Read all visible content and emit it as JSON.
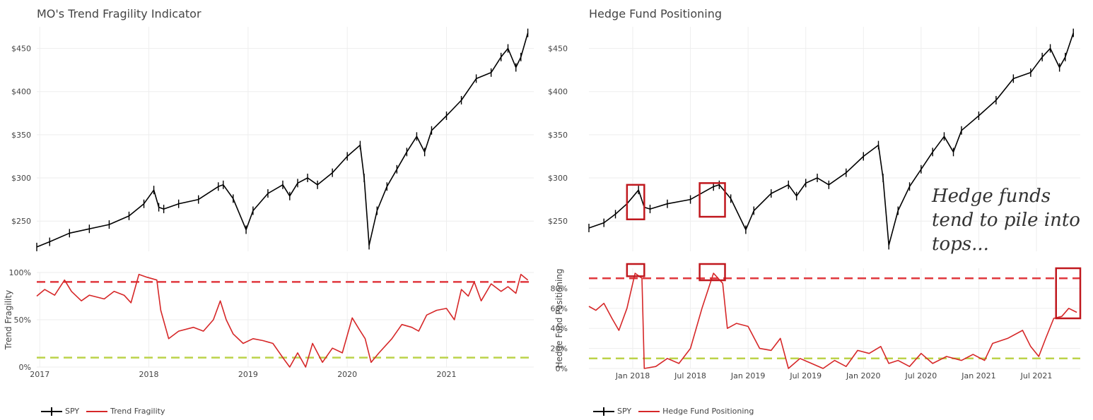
{
  "colors": {
    "price": "#000000",
    "indicator": "#d62728",
    "upper_line": "#e0383e",
    "lower_line": "#bcd34a",
    "highlight": "#c0181e",
    "grid": "#eeeeee"
  },
  "chart_data": [
    {
      "type": "line",
      "title": "MO's Trend Fragility Indicator",
      "price_panel": {
        "series_name": "SPY",
        "y_ticks": [
          "$250",
          "$300",
          "$350",
          "$400",
          "$450"
        ],
        "y_tick_values": [
          250,
          300,
          350,
          400,
          450
        ],
        "ylim": [
          215,
          475
        ],
        "xlim": [
          2016.87,
          2021.88
        ],
        "points": [
          [
            2016.87,
            220
          ],
          [
            2017.0,
            226
          ],
          [
            2017.2,
            236
          ],
          [
            2017.4,
            241
          ],
          [
            2017.6,
            246
          ],
          [
            2017.8,
            256
          ],
          [
            2017.95,
            270
          ],
          [
            2018.05,
            286
          ],
          [
            2018.1,
            266
          ],
          [
            2018.15,
            264
          ],
          [
            2018.3,
            270
          ],
          [
            2018.5,
            275
          ],
          [
            2018.7,
            290
          ],
          [
            2018.75,
            292
          ],
          [
            2018.85,
            276
          ],
          [
            2018.98,
            240
          ],
          [
            2019.05,
            262
          ],
          [
            2019.2,
            282
          ],
          [
            2019.35,
            292
          ],
          [
            2019.42,
            279
          ],
          [
            2019.5,
            294
          ],
          [
            2019.6,
            300
          ],
          [
            2019.7,
            292
          ],
          [
            2019.85,
            306
          ],
          [
            2020.0,
            325
          ],
          [
            2020.13,
            338
          ],
          [
            2020.17,
            300
          ],
          [
            2020.22,
            222
          ],
          [
            2020.3,
            262
          ],
          [
            2020.4,
            290
          ],
          [
            2020.5,
            310
          ],
          [
            2020.6,
            330
          ],
          [
            2020.7,
            348
          ],
          [
            2020.78,
            330
          ],
          [
            2020.85,
            355
          ],
          [
            2021.0,
            372
          ],
          [
            2021.15,
            390
          ],
          [
            2021.3,
            415
          ],
          [
            2021.45,
            422
          ],
          [
            2021.55,
            440
          ],
          [
            2021.62,
            450
          ],
          [
            2021.7,
            428
          ],
          [
            2021.75,
            440
          ],
          [
            2021.82,
            468
          ]
        ]
      },
      "indicator_panel": {
        "series_name": "Trend Fragility",
        "ylabel": "Trend Fragility",
        "y_ticks": [
          "0%",
          "50%",
          "100%"
        ],
        "y_tick_values": [
          0,
          50,
          100
        ],
        "ylim": [
          0,
          100
        ],
        "upper_threshold": 90,
        "lower_threshold": 10,
        "x_ticks": [
          "2017",
          "2018",
          "2019",
          "2020",
          "2021"
        ],
        "x_tick_values": [
          2016.9,
          2018.0,
          2019.0,
          2020.0,
          2021.0
        ],
        "xlim": [
          2016.87,
          2021.88
        ],
        "points": [
          [
            2016.87,
            75
          ],
          [
            2016.95,
            82
          ],
          [
            2017.05,
            76
          ],
          [
            2017.15,
            92
          ],
          [
            2017.22,
            80
          ],
          [
            2017.32,
            70
          ],
          [
            2017.4,
            76
          ],
          [
            2017.55,
            72
          ],
          [
            2017.65,
            80
          ],
          [
            2017.75,
            76
          ],
          [
            2017.82,
            68
          ],
          [
            2017.9,
            98
          ],
          [
            2017.98,
            95
          ],
          [
            2018.08,
            92
          ],
          [
            2018.12,
            60
          ],
          [
            2018.2,
            30
          ],
          [
            2018.3,
            38
          ],
          [
            2018.45,
            42
          ],
          [
            2018.55,
            38
          ],
          [
            2018.65,
            50
          ],
          [
            2018.72,
            70
          ],
          [
            2018.78,
            50
          ],
          [
            2018.85,
            35
          ],
          [
            2018.95,
            25
          ],
          [
            2019.05,
            30
          ],
          [
            2019.15,
            28
          ],
          [
            2019.25,
            25
          ],
          [
            2019.35,
            10
          ],
          [
            2019.42,
            0
          ],
          [
            2019.5,
            15
          ],
          [
            2019.58,
            0
          ],
          [
            2019.65,
            25
          ],
          [
            2019.75,
            5
          ],
          [
            2019.85,
            20
          ],
          [
            2019.95,
            15
          ],
          [
            2020.05,
            52
          ],
          [
            2020.12,
            40
          ],
          [
            2020.18,
            30
          ],
          [
            2020.24,
            5
          ],
          [
            2020.32,
            15
          ],
          [
            2020.45,
            30
          ],
          [
            2020.55,
            45
          ],
          [
            2020.65,
            42
          ],
          [
            2020.72,
            38
          ],
          [
            2020.8,
            55
          ],
          [
            2020.9,
            60
          ],
          [
            2021.0,
            62
          ],
          [
            2021.08,
            50
          ],
          [
            2021.15,
            82
          ],
          [
            2021.22,
            75
          ],
          [
            2021.28,
            90
          ],
          [
            2021.35,
            70
          ],
          [
            2021.45,
            88
          ],
          [
            2021.55,
            80
          ],
          [
            2021.62,
            85
          ],
          [
            2021.7,
            78
          ],
          [
            2021.75,
            98
          ],
          [
            2021.82,
            92
          ]
        ]
      },
      "legend": [
        "SPY",
        "Trend Fragility"
      ]
    },
    {
      "type": "line",
      "title": "Hedge Fund Positioning",
      "price_panel": {
        "series_name": "SPY",
        "y_ticks": [
          "$250",
          "$300",
          "$350",
          "$400",
          "$450"
        ],
        "y_tick_values": [
          250,
          300,
          350,
          400,
          450
        ],
        "ylim": [
          215,
          475
        ],
        "xlim": [
          2017.62,
          2021.88
        ],
        "points": [
          [
            2017.62,
            242
          ],
          [
            2017.75,
            248
          ],
          [
            2017.85,
            258
          ],
          [
            2017.95,
            270
          ],
          [
            2018.05,
            286
          ],
          [
            2018.1,
            266
          ],
          [
            2018.15,
            264
          ],
          [
            2018.3,
            270
          ],
          [
            2018.5,
            275
          ],
          [
            2018.7,
            290
          ],
          [
            2018.75,
            292
          ],
          [
            2018.85,
            276
          ],
          [
            2018.98,
            240
          ],
          [
            2019.05,
            262
          ],
          [
            2019.2,
            282
          ],
          [
            2019.35,
            292
          ],
          [
            2019.42,
            279
          ],
          [
            2019.5,
            294
          ],
          [
            2019.6,
            300
          ],
          [
            2019.7,
            292
          ],
          [
            2019.85,
            306
          ],
          [
            2020.0,
            325
          ],
          [
            2020.13,
            338
          ],
          [
            2020.17,
            300
          ],
          [
            2020.22,
            222
          ],
          [
            2020.3,
            262
          ],
          [
            2020.4,
            290
          ],
          [
            2020.5,
            310
          ],
          [
            2020.6,
            330
          ],
          [
            2020.7,
            348
          ],
          [
            2020.78,
            330
          ],
          [
            2020.85,
            355
          ],
          [
            2021.0,
            372
          ],
          [
            2021.15,
            390
          ],
          [
            2021.3,
            415
          ],
          [
            2021.45,
            422
          ],
          [
            2021.55,
            440
          ],
          [
            2021.62,
            450
          ],
          [
            2021.7,
            428
          ],
          [
            2021.75,
            440
          ],
          [
            2021.82,
            468
          ]
        ]
      },
      "indicator_panel": {
        "series_name": "Hedge Fund Positioning",
        "ylabel": "Hedge Fund Positioning",
        "y_ticks": [
          "0%",
          "20%",
          "40%",
          "60%",
          "80%"
        ],
        "y_tick_values": [
          0,
          20,
          40,
          60,
          80
        ],
        "ylim": [
          0,
          100
        ],
        "upper_threshold": 90,
        "lower_threshold": 10,
        "x_ticks": [
          "Jan 2018",
          "Jul 2018",
          "Jan 2019",
          "Jul 2019",
          "Jan 2020",
          "Jul 2020",
          "Jan 2021",
          "Jul 2021"
        ],
        "x_tick_values": [
          2018.0,
          2018.5,
          2019.0,
          2019.5,
          2020.0,
          2020.5,
          2021.0,
          2021.5
        ],
        "xlim": [
          2017.62,
          2021.88
        ],
        "points": [
          [
            2017.62,
            62
          ],
          [
            2017.68,
            58
          ],
          [
            2017.75,
            65
          ],
          [
            2017.82,
            50
          ],
          [
            2017.88,
            38
          ],
          [
            2017.95,
            60
          ],
          [
            2018.02,
            95
          ],
          [
            2018.08,
            90
          ],
          [
            2018.1,
            0
          ],
          [
            2018.2,
            2
          ],
          [
            2018.3,
            10
          ],
          [
            2018.4,
            5
          ],
          [
            2018.5,
            20
          ],
          [
            2018.6,
            60
          ],
          [
            2018.7,
            95
          ],
          [
            2018.78,
            85
          ],
          [
            2018.82,
            40
          ],
          [
            2018.9,
            45
          ],
          [
            2019.0,
            42
          ],
          [
            2019.1,
            20
          ],
          [
            2019.2,
            18
          ],
          [
            2019.28,
            30
          ],
          [
            2019.35,
            0
          ],
          [
            2019.45,
            10
          ],
          [
            2019.55,
            5
          ],
          [
            2019.65,
            0
          ],
          [
            2019.75,
            8
          ],
          [
            2019.85,
            2
          ],
          [
            2019.95,
            18
          ],
          [
            2020.05,
            15
          ],
          [
            2020.15,
            22
          ],
          [
            2020.22,
            5
          ],
          [
            2020.3,
            8
          ],
          [
            2020.4,
            2
          ],
          [
            2020.5,
            15
          ],
          [
            2020.6,
            5
          ],
          [
            2020.72,
            12
          ],
          [
            2020.85,
            8
          ],
          [
            2020.95,
            14
          ],
          [
            2021.05,
            8
          ],
          [
            2021.12,
            25
          ],
          [
            2021.25,
            30
          ],
          [
            2021.38,
            38
          ],
          [
            2021.45,
            22
          ],
          [
            2021.52,
            12
          ],
          [
            2021.58,
            30
          ],
          [
            2021.65,
            50
          ],
          [
            2021.72,
            52
          ],
          [
            2021.78,
            60
          ],
          [
            2021.85,
            56
          ]
        ]
      },
      "legend": [
        "SPY",
        "Hedge Fund Positioning"
      ],
      "annotation": [
        "Hedge funds",
        "tend to pile into",
        "tops..."
      ]
    }
  ]
}
